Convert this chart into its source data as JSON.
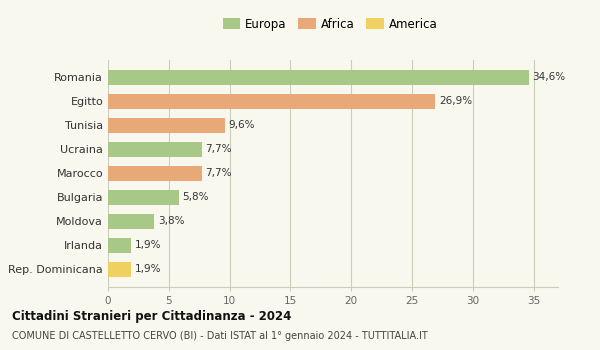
{
  "categories": [
    "Romania",
    "Egitto",
    "Tunisia",
    "Ucraina",
    "Marocco",
    "Bulgaria",
    "Moldova",
    "Irlanda",
    "Rep. Dominicana"
  ],
  "values": [
    34.6,
    26.9,
    9.6,
    7.7,
    7.7,
    5.8,
    3.8,
    1.9,
    1.9
  ],
  "labels": [
    "34,6%",
    "26,9%",
    "9,6%",
    "7,7%",
    "7,7%",
    "5,8%",
    "3,8%",
    "1,9%",
    "1,9%"
  ],
  "colors": [
    "#a8c888",
    "#e8a878",
    "#e8a878",
    "#a8c888",
    "#e8a878",
    "#a8c888",
    "#a8c888",
    "#a8c888",
    "#f0d060"
  ],
  "legend_labels": [
    "Europa",
    "Africa",
    "America"
  ],
  "legend_colors": [
    "#a8c888",
    "#e8a878",
    "#f0d060"
  ],
  "title": "Cittadini Stranieri per Cittadinanza - 2024",
  "subtitle": "COMUNE DI CASTELLETTO CERVO (BI) - Dati ISTAT al 1° gennaio 2024 - TUTTITALIA.IT",
  "xlim": [
    0,
    37
  ],
  "xticks": [
    0,
    5,
    10,
    15,
    20,
    25,
    30,
    35
  ],
  "background_color": "#f8f8ee",
  "grid_color": "#ccccbb"
}
